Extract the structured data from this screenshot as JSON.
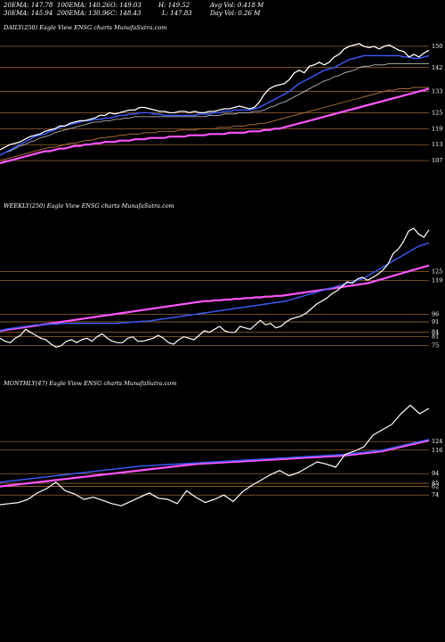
{
  "header": {
    "ema20": "20EMA: 147.78",
    "ema100": "100EMA: 140.26",
    "open": "O: 149.03",
    "high": "H: 149.52",
    "avg_vol": "Avg Vol: 0.418  M",
    "ema30": "30EMA: 145.94",
    "ema200": "200EMA: 130.96",
    "close": "C: 148.43",
    "low": "L: 147.83",
    "day_vol": "Day Vol: 0.26  M"
  },
  "colors": {
    "background": "#000000",
    "price": "#ffffff",
    "ema_short": "#3a5cff",
    "ema_long": "#ff55ff",
    "level_line": "#b8763a"
  },
  "chart_data": [
    {
      "type": "line",
      "title": "DAILY(250) Eagle   View  ENSG charts MunafaSutra.com",
      "levels": [
        "150",
        "142",
        "133",
        "125",
        "119",
        "113",
        "107"
      ],
      "ylim": [
        105,
        152
      ],
      "series": [
        {
          "values": [
            111,
            112,
            113,
            113.5,
            114,
            115,
            116,
            116.5,
            117,
            118,
            118.5,
            119,
            120,
            120,
            121,
            121.5,
            122,
            122,
            122.5,
            123,
            124,
            124,
            125,
            124.5,
            125,
            125.5,
            126,
            126,
            127,
            127,
            126.5,
            126,
            125.5,
            125.5,
            125,
            125,
            125.5,
            125.5,
            125,
            125.5,
            125,
            125,
            125.5,
            125.5,
            126,
            126.5,
            126.5,
            127,
            127.5,
            127,
            126.5,
            127,
            129,
            132,
            134,
            135,
            135.5,
            136,
            137.5,
            140,
            141,
            140,
            142.5,
            143,
            144,
            143,
            144,
            146,
            147,
            149,
            150,
            150.5,
            151,
            150,
            149.5,
            150,
            149,
            150,
            150.5,
            149.5,
            148.5,
            148,
            146,
            147,
            146,
            147.5,
            148.5
          ]
        },
        {
          "values": [
            109,
            110,
            111,
            112,
            113,
            114,
            115,
            116,
            116.5,
            117,
            118,
            118.5,
            119.5,
            120,
            120.5,
            121,
            121.5,
            122,
            122,
            122.5,
            122.5,
            123,
            123,
            123.5,
            124,
            124,
            124.5,
            124.5,
            125,
            125,
            125,
            124.5,
            124.5,
            124,
            124,
            124,
            124,
            124,
            124,
            124,
            124.5,
            124.5,
            124.5,
            125,
            125,
            125.5,
            125.5,
            126,
            126,
            126,
            126,
            126.5,
            127,
            128,
            129,
            130,
            131,
            132,
            133,
            134.5,
            136,
            137,
            138,
            139,
            140,
            141,
            141.5,
            142,
            143,
            144,
            145,
            145.5,
            146,
            146.5,
            146.5,
            146.5,
            146.5,
            146.5,
            146.5,
            146.5,
            146.5,
            146,
            146,
            145.5,
            145.5,
            146,
            146.5
          ]
        },
        {
          "values": [
            109,
            110,
            110.5,
            111.5,
            112.5,
            113,
            114,
            114.5,
            115.5,
            116,
            116.5,
            117.5,
            118,
            118.5,
            119,
            119.5,
            120,
            120.5,
            121,
            121.5,
            121.5,
            122,
            122,
            122.5,
            122.5,
            123,
            123,
            123.5,
            123.5,
            123.5,
            123.5,
            123.5,
            123.5,
            123.5,
            123.5,
            123.5,
            123.5,
            123.5,
            123.5,
            123.5,
            123.5,
            123.5,
            124,
            124,
            124,
            124.5,
            124.5,
            124.5,
            125,
            125,
            125,
            125.5,
            125.5,
            126,
            127,
            127.5,
            128.5,
            129,
            130,
            131,
            132,
            133,
            134,
            135,
            136,
            137,
            137.5,
            138.5,
            139,
            140,
            140.5,
            141,
            142,
            142.5,
            142.5,
            143,
            143,
            143,
            143.5,
            143.5,
            143.5,
            143.5,
            143.5,
            143.5,
            143.5,
            143.5,
            143.5
          ]
        },
        {
          "values": [
            107,
            107.5,
            108,
            108.5,
            109,
            109.5,
            110,
            110.5,
            111,
            111.5,
            112,
            112,
            112.5,
            113,
            113.5,
            113.5,
            114,
            114.5,
            114.5,
            115,
            115.5,
            115.5,
            116,
            116,
            116.5,
            116.5,
            117,
            117,
            117,
            117.5,
            117.5,
            117.5,
            118,
            118,
            118,
            118,
            118.5,
            118.5,
            118.5,
            118.5,
            119,
            119,
            119,
            119,
            119.5,
            119.5,
            119.5,
            120,
            120,
            120,
            120.5,
            120.5,
            121,
            121,
            121.5,
            122,
            122.5,
            123,
            123.5,
            124,
            124.5,
            125,
            125.5,
            126,
            126.5,
            127,
            127.5,
            128,
            128.5,
            129,
            129.5,
            130,
            130.5,
            131,
            131.5,
            132,
            132.5,
            133,
            133.5,
            133.5,
            134,
            134,
            134,
            134.5,
            134.5,
            134.5,
            134.5
          ]
        },
        {
          "values": [
            106,
            106.5,
            107,
            107.5,
            108,
            108.5,
            109,
            109.5,
            110,
            110.5,
            110.5,
            111,
            111.5,
            111.5,
            112,
            112.5,
            112.5,
            113,
            113,
            113.5,
            113.5,
            114,
            114,
            114,
            114.5,
            114.5,
            114.5,
            115,
            115,
            115,
            115.5,
            115.5,
            115.5,
            115.5,
            116,
            116,
            116,
            116,
            116.5,
            116.5,
            116.5,
            116.5,
            117,
            117,
            117,
            117,
            117.5,
            117.5,
            117.5,
            117.5,
            118,
            118,
            118,
            118.5,
            118.5,
            119,
            119,
            119.5,
            120,
            120.5,
            121,
            121.5,
            122,
            122.5,
            123,
            123.5,
            124,
            124.5,
            125,
            125.5,
            126,
            126.5,
            127,
            127.5,
            128,
            128.5,
            129,
            129.5,
            130,
            130.5,
            131,
            131.5,
            132,
            132.5,
            133,
            133.5,
            134
          ]
        }
      ]
    },
    {
      "type": "line",
      "title": "WEEKLY(250) Eagle   View  ENSG charts MunafaSutra.com",
      "levels": [
        "125",
        "119",
        "96",
        "91",
        "84",
        "81",
        "75"
      ],
      "ylim": [
        70,
        160
      ],
      "series": [
        {
          "values": [
            80,
            78,
            77,
            80,
            82,
            86,
            84,
            82,
            80,
            79,
            76,
            74,
            75,
            78,
            79,
            77,
            79,
            80,
            78,
            81,
            83,
            80,
            78,
            77,
            77,
            80,
            81,
            78,
            78,
            79,
            80,
            82,
            80,
            77,
            76,
            79,
            81,
            80,
            79,
            82,
            85,
            84,
            86,
            88,
            85,
            84,
            84,
            88,
            87,
            86,
            89,
            92,
            89,
            90,
            87,
            88,
            91,
            93,
            94,
            95,
            97,
            100,
            103,
            105,
            107,
            110,
            112,
            115,
            118,
            117,
            120,
            121,
            119,
            121,
            123,
            126,
            130,
            137,
            140,
            145,
            152,
            154,
            150,
            148,
            153
          ]
        },
        {
          "values": [
            85,
            86,
            86.5,
            87,
            87.5,
            88,
            88.5,
            89,
            89,
            89.5,
            89.5,
            89.5,
            90,
            90,
            90,
            90,
            90,
            90,
            90,
            90,
            90,
            90,
            90,
            90,
            90.5,
            90.5,
            91,
            91,
            91.5,
            91.5,
            92,
            92.5,
            93,
            93.5,
            94,
            94.5,
            95,
            95.5,
            96,
            96.5,
            97,
            97.5,
            98,
            98.5,
            99,
            99.5,
            100,
            100.5,
            101,
            101.5,
            102,
            102.5,
            103,
            103.5,
            104,
            104.5,
            105,
            106,
            107,
            108,
            109,
            110,
            111,
            112,
            113,
            114,
            115,
            116,
            117,
            118,
            119,
            120,
            122,
            124,
            126,
            128,
            130,
            132,
            134,
            136,
            138,
            140,
            142,
            143,
            144
          ]
        },
        {
          "values": [
            85,
            85.5,
            86,
            86.5,
            87,
            87.5,
            88,
            88.5,
            89,
            89.5,
            90,
            90.5,
            91,
            91.5,
            92,
            92.5,
            93,
            93.5,
            94,
            94.5,
            95,
            95.5,
            96,
            96.5,
            97,
            97.5,
            98,
            98.5,
            99,
            99.5,
            100,
            100.5,
            101,
            101.5,
            102,
            102.5,
            103,
            103.5,
            104,
            104.5,
            105,
            105,
            105.5,
            105.5,
            106,
            106,
            106.5,
            106.5,
            107,
            107,
            107.5,
            107.5,
            108,
            108,
            108.5,
            108.5,
            109,
            109.5,
            110,
            110.5,
            111,
            111.5,
            112,
            112.5,
            113,
            113.5,
            114,
            114.5,
            115,
            115.5,
            116,
            116.5,
            117,
            118,
            119,
            120,
            121,
            122,
            123,
            124,
            125,
            126,
            127,
            128,
            129
          ]
        }
      ]
    },
    {
      "type": "line",
      "title": "MONTHLY(47) Eagle   View  ENSG charts MunafaSutra.com",
      "levels": [
        "124",
        "116",
        "94",
        "85",
        "82",
        "74"
      ],
      "ylim": [
        40,
        165
      ],
      "series": [
        {
          "values": [
            65,
            66,
            67,
            70,
            76,
            80,
            86,
            78,
            75,
            70,
            72,
            69,
            66,
            64,
            68,
            72,
            76,
            71,
            70,
            66,
            78,
            72,
            67,
            70,
            74,
            68,
            77,
            83,
            88,
            93,
            97,
            92,
            95,
            100,
            105,
            103,
            100,
            112,
            115,
            119,
            130,
            135,
            140,
            150,
            158,
            150,
            155
          ]
        },
        {
          "values": [
            86,
            87,
            88,
            89,
            90,
            91,
            92,
            93,
            94,
            95,
            96,
            97,
            98,
            99,
            100,
            101,
            101.5,
            102,
            102.5,
            103,
            103.5,
            104,
            104.5,
            105,
            105.5,
            106,
            106.5,
            107,
            107.5,
            108,
            108.5,
            109,
            109.5,
            110,
            110.5,
            111,
            111.5,
            112,
            113,
            114,
            115,
            116,
            118,
            120,
            122,
            124,
            126
          ]
        },
        {
          "values": [
            82,
            83,
            84,
            85,
            86,
            87,
            88,
            89,
            90,
            91,
            92,
            93,
            94,
            95,
            96,
            97,
            98,
            99,
            100,
            101,
            102,
            103,
            103.5,
            104,
            104.5,
            105,
            105.5,
            106,
            106.5,
            107,
            107.5,
            108,
            108.5,
            109,
            109.5,
            110,
            110.5,
            111,
            112,
            113,
            114,
            115,
            117,
            119,
            121,
            123,
            125
          ]
        }
      ]
    }
  ]
}
